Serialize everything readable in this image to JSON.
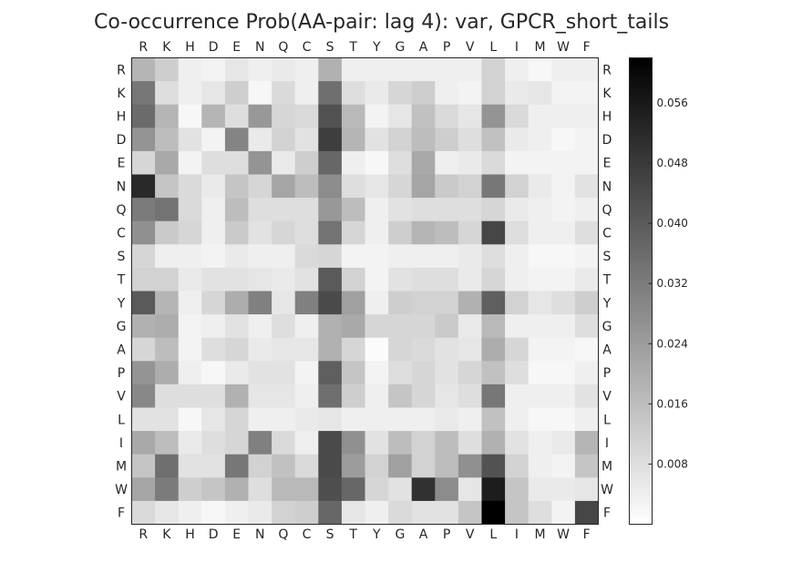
{
  "chart_data": {
    "type": "heatmap",
    "title": "Co-occurrence Prob(AA-pair: lag 4): var, GPCR_short_tails",
    "x_labels": [
      "R",
      "K",
      "H",
      "D",
      "E",
      "N",
      "Q",
      "C",
      "S",
      "T",
      "Y",
      "G",
      "A",
      "P",
      "V",
      "L",
      "I",
      "M",
      "W",
      "F"
    ],
    "y_labels": [
      "R",
      "K",
      "H",
      "D",
      "E",
      "N",
      "Q",
      "C",
      "S",
      "T",
      "Y",
      "G",
      "A",
      "P",
      "V",
      "L",
      "I",
      "M",
      "W",
      "F"
    ],
    "value_range": [
      0.0,
      0.062
    ],
    "colorbar_ticks": [
      "0.008",
      "0.016",
      "0.024",
      "0.032",
      "0.040",
      "0.048",
      "0.056"
    ],
    "colormap": {
      "low": "#ffffff",
      "high": "#000000"
    },
    "grid": false,
    "values": [
      [
        0.018,
        0.012,
        0.004,
        0.003,
        0.006,
        0.004,
        0.005,
        0.004,
        0.019,
        0.004,
        0.004,
        0.004,
        0.004,
        0.004,
        0.004,
        0.011,
        0.004,
        0.002,
        0.004,
        0.004
      ],
      [
        0.033,
        0.008,
        0.004,
        0.006,
        0.012,
        0.002,
        0.009,
        0.004,
        0.035,
        0.008,
        0.005,
        0.01,
        0.012,
        0.004,
        0.003,
        0.011,
        0.005,
        0.006,
        0.003,
        0.003
      ],
      [
        0.036,
        0.018,
        0.002,
        0.018,
        0.008,
        0.025,
        0.01,
        0.009,
        0.042,
        0.017,
        0.003,
        0.006,
        0.015,
        0.009,
        0.006,
        0.026,
        0.009,
        0.004,
        0.004,
        0.004
      ],
      [
        0.026,
        0.016,
        0.007,
        0.003,
        0.03,
        0.005,
        0.011,
        0.007,
        0.047,
        0.018,
        0.007,
        0.011,
        0.016,
        0.012,
        0.008,
        0.015,
        0.005,
        0.004,
        0.002,
        0.003
      ],
      [
        0.01,
        0.021,
        0.003,
        0.008,
        0.008,
        0.026,
        0.005,
        0.012,
        0.037,
        0.004,
        0.002,
        0.008,
        0.021,
        0.004,
        0.005,
        0.009,
        0.003,
        0.003,
        0.003,
        0.003
      ],
      [
        0.052,
        0.014,
        0.009,
        0.005,
        0.014,
        0.01,
        0.022,
        0.016,
        0.028,
        0.008,
        0.006,
        0.01,
        0.022,
        0.013,
        0.011,
        0.033,
        0.011,
        0.005,
        0.003,
        0.007
      ],
      [
        0.032,
        0.034,
        0.009,
        0.004,
        0.016,
        0.008,
        0.008,
        0.008,
        0.025,
        0.016,
        0.004,
        0.007,
        0.008,
        0.008,
        0.008,
        0.01,
        0.005,
        0.004,
        0.003,
        0.004
      ],
      [
        0.027,
        0.013,
        0.01,
        0.004,
        0.013,
        0.007,
        0.01,
        0.008,
        0.034,
        0.01,
        0.004,
        0.012,
        0.018,
        0.016,
        0.01,
        0.045,
        0.008,
        0.004,
        0.004,
        0.008
      ],
      [
        0.01,
        0.004,
        0.004,
        0.003,
        0.005,
        0.004,
        0.004,
        0.009,
        0.01,
        0.003,
        0.003,
        0.004,
        0.004,
        0.004,
        0.005,
        0.008,
        0.004,
        0.002,
        0.002,
        0.003
      ],
      [
        0.011,
        0.011,
        0.005,
        0.007,
        0.007,
        0.006,
        0.005,
        0.007,
        0.04,
        0.011,
        0.003,
        0.007,
        0.008,
        0.008,
        0.005,
        0.01,
        0.004,
        0.003,
        0.003,
        0.005
      ],
      [
        0.04,
        0.018,
        0.004,
        0.01,
        0.02,
        0.031,
        0.006,
        0.031,
        0.044,
        0.023,
        0.004,
        0.012,
        0.011,
        0.011,
        0.019,
        0.039,
        0.011,
        0.006,
        0.008,
        0.012
      ],
      [
        0.019,
        0.02,
        0.003,
        0.004,
        0.007,
        0.004,
        0.008,
        0.004,
        0.019,
        0.021,
        0.01,
        0.01,
        0.01,
        0.013,
        0.005,
        0.017,
        0.004,
        0.004,
        0.004,
        0.008
      ],
      [
        0.01,
        0.016,
        0.003,
        0.008,
        0.01,
        0.005,
        0.006,
        0.006,
        0.019,
        0.01,
        0.001,
        0.01,
        0.009,
        0.007,
        0.006,
        0.02,
        0.01,
        0.003,
        0.003,
        0.002
      ],
      [
        0.026,
        0.02,
        0.004,
        0.002,
        0.005,
        0.007,
        0.007,
        0.003,
        0.039,
        0.014,
        0.003,
        0.008,
        0.01,
        0.007,
        0.01,
        0.015,
        0.008,
        0.002,
        0.002,
        0.004
      ],
      [
        0.029,
        0.008,
        0.008,
        0.008,
        0.019,
        0.006,
        0.006,
        0.004,
        0.035,
        0.012,
        0.004,
        0.014,
        0.01,
        0.006,
        0.008,
        0.033,
        0.004,
        0.004,
        0.004,
        0.007
      ],
      [
        0.007,
        0.007,
        0.002,
        0.006,
        0.01,
        0.004,
        0.004,
        0.005,
        0.006,
        0.004,
        0.004,
        0.004,
        0.004,
        0.005,
        0.004,
        0.015,
        0.004,
        0.002,
        0.002,
        0.004
      ],
      [
        0.021,
        0.016,
        0.005,
        0.008,
        0.01,
        0.031,
        0.009,
        0.004,
        0.044,
        0.027,
        0.007,
        0.016,
        0.011,
        0.016,
        0.008,
        0.019,
        0.007,
        0.004,
        0.005,
        0.018
      ],
      [
        0.014,
        0.035,
        0.007,
        0.007,
        0.033,
        0.011,
        0.015,
        0.009,
        0.044,
        0.024,
        0.011,
        0.023,
        0.011,
        0.016,
        0.027,
        0.042,
        0.011,
        0.004,
        0.003,
        0.014
      ],
      [
        0.022,
        0.032,
        0.012,
        0.014,
        0.019,
        0.008,
        0.017,
        0.017,
        0.043,
        0.037,
        0.01,
        0.007,
        0.05,
        0.028,
        0.006,
        0.055,
        0.014,
        0.005,
        0.005,
        0.006
      ],
      [
        0.009,
        0.006,
        0.004,
        0.002,
        0.004,
        0.005,
        0.011,
        0.012,
        0.037,
        0.006,
        0.004,
        0.009,
        0.007,
        0.007,
        0.014,
        0.062,
        0.014,
        0.008,
        0.003,
        0.045
      ]
    ]
  }
}
